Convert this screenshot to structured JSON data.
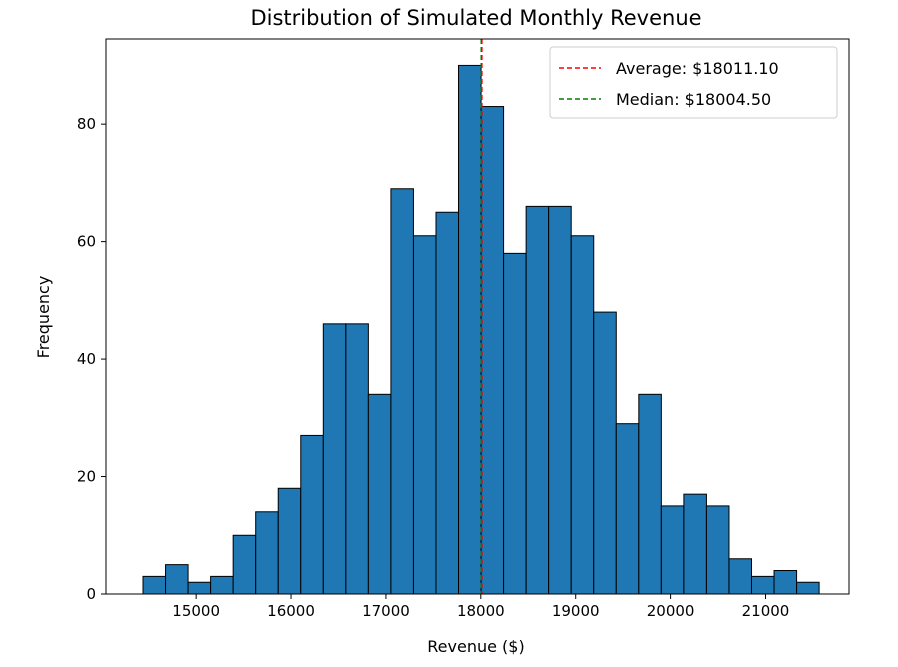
{
  "chart_data": {
    "type": "bar",
    "title": "Distribution of Simulated Monthly Revenue",
    "xlabel": "Revenue ($)",
    "ylabel": "Frequency",
    "xlim": [
      14050,
      21880
    ],
    "ylim": [
      0,
      94.5
    ],
    "xticks": [
      15000,
      16000,
      17000,
      18000,
      19000,
      20000,
      21000
    ],
    "yticks": [
      0,
      20,
      40,
      60,
      80
    ],
    "bin_start": 14440,
    "bin_width": 237.5,
    "counts": [
      3,
      5,
      2,
      3,
      10,
      14,
      18,
      27,
      46,
      46,
      34,
      69,
      61,
      65,
      90,
      83,
      58,
      66,
      66,
      61,
      48,
      29,
      34,
      15,
      17,
      15,
      6,
      3,
      4,
      2
    ],
    "bar_color": "#1f77b4",
    "bar_edge_color": "#000000",
    "grid": false,
    "legend_position": "upper right",
    "lines": [
      {
        "label": "Average: $18011.10",
        "x": 18011.1,
        "color": "#ff0000",
        "style": "dashed"
      },
      {
        "label": "Median: $18004.50",
        "x": 18004.5,
        "color": "#008000",
        "style": "dashed"
      }
    ]
  }
}
